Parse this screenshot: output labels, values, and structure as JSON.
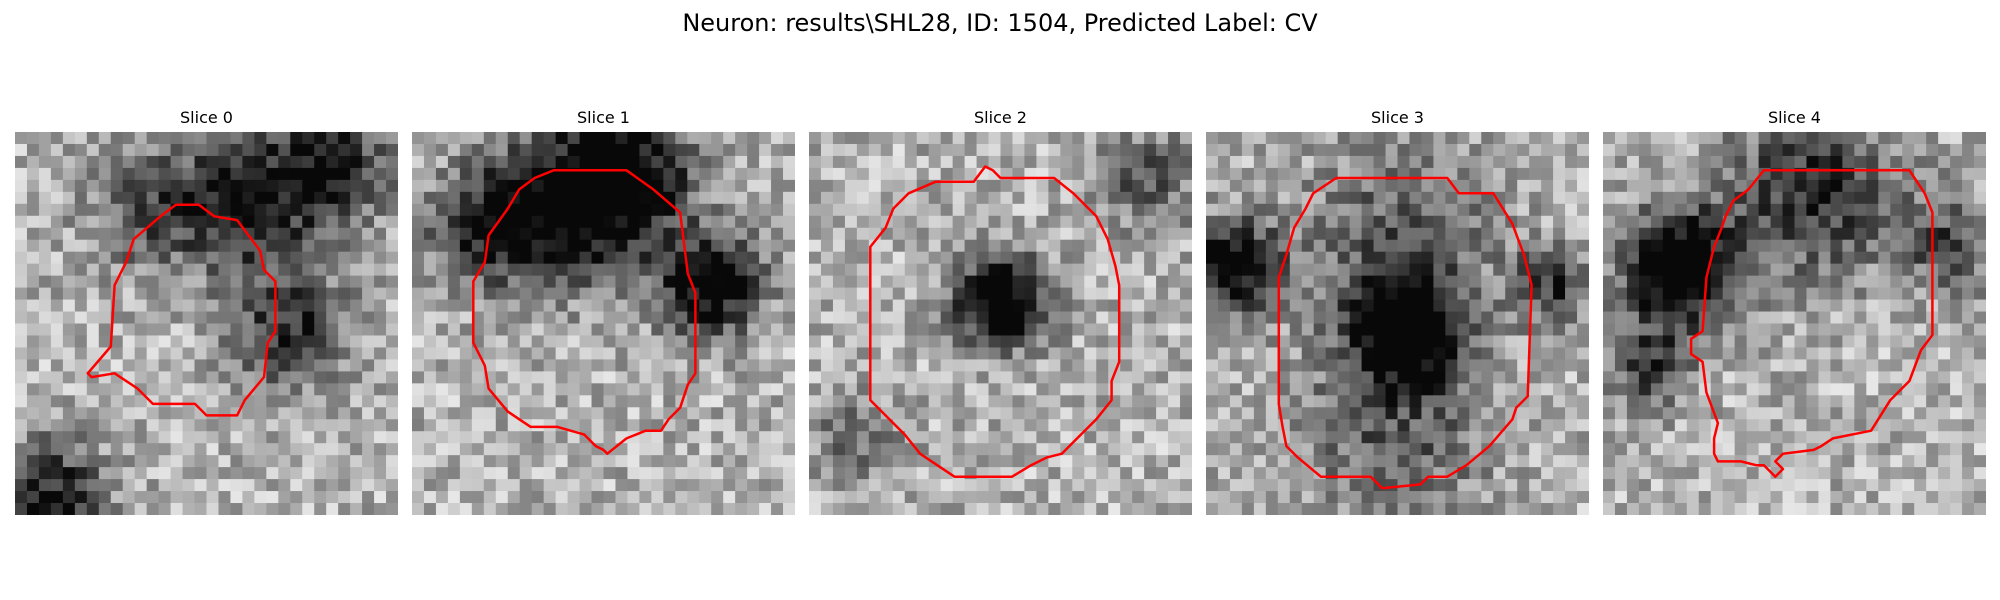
{
  "title": "Neuron: results\\SHL28, ID: 1504, Predicted Label: CV",
  "contour_color": "#ff0000",
  "slices": [
    {
      "label": "Slice 0",
      "seed": 11,
      "dark_blobs": [
        [
          0.62,
          0.18,
          0.18,
          0.65
        ],
        [
          0.85,
          0.08,
          0.15,
          0.5
        ],
        [
          0.72,
          0.52,
          0.15,
          0.55
        ],
        [
          0.1,
          0.95,
          0.14,
          0.6
        ],
        [
          0.35,
          0.2,
          0.16,
          0.4
        ]
      ],
      "contour": [
        [
          0.42,
          0.19
        ],
        [
          0.48,
          0.19
        ],
        [
          0.52,
          0.22
        ],
        [
          0.58,
          0.23
        ],
        [
          0.64,
          0.31
        ],
        [
          0.65,
          0.36
        ],
        [
          0.68,
          0.39
        ],
        [
          0.68,
          0.52
        ],
        [
          0.66,
          0.55
        ],
        [
          0.65,
          0.64
        ],
        [
          0.6,
          0.7
        ],
        [
          0.58,
          0.74
        ],
        [
          0.5,
          0.74
        ],
        [
          0.47,
          0.71
        ],
        [
          0.36,
          0.71
        ],
        [
          0.32,
          0.67
        ],
        [
          0.26,
          0.63
        ],
        [
          0.2,
          0.64
        ],
        [
          0.19,
          0.63
        ],
        [
          0.25,
          0.56
        ],
        [
          0.26,
          0.4
        ],
        [
          0.29,
          0.34
        ],
        [
          0.31,
          0.28
        ],
        [
          0.38,
          0.22
        ]
      ]
    },
    {
      "label": "Slice 1",
      "seed": 23,
      "dark_blobs": [
        [
          0.45,
          0.17,
          0.2,
          0.85
        ],
        [
          0.2,
          0.25,
          0.15,
          0.6
        ],
        [
          0.78,
          0.4,
          0.13,
          0.8
        ],
        [
          0.6,
          0.1,
          0.15,
          0.4
        ]
      ],
      "contour": [
        [
          0.37,
          0.1
        ],
        [
          0.56,
          0.1
        ],
        [
          0.63,
          0.15
        ],
        [
          0.7,
          0.21
        ],
        [
          0.72,
          0.37
        ],
        [
          0.74,
          0.42
        ],
        [
          0.74,
          0.63
        ],
        [
          0.72,
          0.66
        ],
        [
          0.7,
          0.72
        ],
        [
          0.67,
          0.75
        ],
        [
          0.65,
          0.78
        ],
        [
          0.61,
          0.78
        ],
        [
          0.56,
          0.8
        ],
        [
          0.51,
          0.84
        ],
        [
          0.5,
          0.83
        ],
        [
          0.48,
          0.82
        ],
        [
          0.45,
          0.79
        ],
        [
          0.38,
          0.77
        ],
        [
          0.31,
          0.77
        ],
        [
          0.25,
          0.73
        ],
        [
          0.2,
          0.67
        ],
        [
          0.19,
          0.61
        ],
        [
          0.16,
          0.55
        ],
        [
          0.16,
          0.39
        ],
        [
          0.19,
          0.34
        ],
        [
          0.2,
          0.27
        ],
        [
          0.25,
          0.2
        ],
        [
          0.28,
          0.15
        ],
        [
          0.32,
          0.12
        ]
      ]
    },
    {
      "label": "Slice 2",
      "seed": 37,
      "dark_blobs": [
        [
          0.5,
          0.44,
          0.12,
          0.9
        ],
        [
          0.88,
          0.12,
          0.14,
          0.35
        ],
        [
          0.12,
          0.8,
          0.12,
          0.3
        ]
      ],
      "contour": [
        [
          0.46,
          0.09
        ],
        [
          0.48,
          0.1
        ],
        [
          0.5,
          0.12
        ],
        [
          0.64,
          0.12
        ],
        [
          0.69,
          0.16
        ],
        [
          0.75,
          0.22
        ],
        [
          0.78,
          0.28
        ],
        [
          0.8,
          0.35
        ],
        [
          0.81,
          0.4
        ],
        [
          0.81,
          0.6
        ],
        [
          0.79,
          0.65
        ],
        [
          0.79,
          0.7
        ],
        [
          0.75,
          0.75
        ],
        [
          0.7,
          0.8
        ],
        [
          0.66,
          0.84
        ],
        [
          0.62,
          0.85
        ],
        [
          0.58,
          0.87
        ],
        [
          0.53,
          0.9
        ],
        [
          0.38,
          0.9
        ],
        [
          0.32,
          0.86
        ],
        [
          0.29,
          0.84
        ],
        [
          0.25,
          0.79
        ],
        [
          0.21,
          0.75
        ],
        [
          0.16,
          0.7
        ],
        [
          0.16,
          0.3
        ],
        [
          0.2,
          0.25
        ],
        [
          0.22,
          0.2
        ],
        [
          0.26,
          0.16
        ],
        [
          0.33,
          0.13
        ],
        [
          0.43,
          0.13
        ]
      ]
    },
    {
      "label": "Slice 3",
      "seed": 53,
      "dark_blobs": [
        [
          0.52,
          0.52,
          0.13,
          0.95
        ],
        [
          0.07,
          0.35,
          0.12,
          0.8
        ],
        [
          0.9,
          0.4,
          0.1,
          0.5
        ],
        [
          0.5,
          0.28,
          0.25,
          0.35
        ],
        [
          0.5,
          0.78,
          0.25,
          0.35
        ]
      ],
      "contour": [
        [
          0.34,
          0.12
        ],
        [
          0.63,
          0.12
        ],
        [
          0.66,
          0.16
        ],
        [
          0.75,
          0.16
        ],
        [
          0.8,
          0.24
        ],
        [
          0.83,
          0.32
        ],
        [
          0.85,
          0.4
        ],
        [
          0.84,
          0.69
        ],
        [
          0.81,
          0.72
        ],
        [
          0.8,
          0.75
        ],
        [
          0.74,
          0.82
        ],
        [
          0.68,
          0.87
        ],
        [
          0.63,
          0.9
        ],
        [
          0.58,
          0.9
        ],
        [
          0.56,
          0.92
        ],
        [
          0.46,
          0.93
        ],
        [
          0.43,
          0.9
        ],
        [
          0.3,
          0.9
        ],
        [
          0.24,
          0.85
        ],
        [
          0.21,
          0.82
        ],
        [
          0.2,
          0.77
        ],
        [
          0.19,
          0.71
        ],
        [
          0.19,
          0.38
        ],
        [
          0.21,
          0.32
        ],
        [
          0.23,
          0.25
        ],
        [
          0.26,
          0.2
        ],
        [
          0.28,
          0.16
        ]
      ]
    },
    {
      "label": "Slice 4",
      "seed": 71,
      "dark_blobs": [
        [
          0.2,
          0.36,
          0.15,
          0.95
        ],
        [
          0.55,
          0.15,
          0.22,
          0.55
        ],
        [
          0.12,
          0.62,
          0.1,
          0.5
        ],
        [
          0.9,
          0.3,
          0.12,
          0.4
        ]
      ],
      "contour": [
        [
          0.42,
          0.1
        ],
        [
          0.8,
          0.1
        ],
        [
          0.84,
          0.16
        ],
        [
          0.86,
          0.21
        ],
        [
          0.86,
          0.53
        ],
        [
          0.83,
          0.57
        ],
        [
          0.8,
          0.65
        ],
        [
          0.75,
          0.7
        ],
        [
          0.7,
          0.78
        ],
        [
          0.6,
          0.8
        ],
        [
          0.57,
          0.82
        ],
        [
          0.55,
          0.83
        ],
        [
          0.47,
          0.84
        ],
        [
          0.45,
          0.86
        ],
        [
          0.47,
          0.88
        ],
        [
          0.45,
          0.9
        ],
        [
          0.42,
          0.87
        ],
        [
          0.4,
          0.87
        ],
        [
          0.36,
          0.86
        ],
        [
          0.3,
          0.86
        ],
        [
          0.29,
          0.84
        ],
        [
          0.29,
          0.8
        ],
        [
          0.3,
          0.76
        ],
        [
          0.27,
          0.68
        ],
        [
          0.26,
          0.6
        ],
        [
          0.23,
          0.58
        ],
        [
          0.23,
          0.54
        ],
        [
          0.26,
          0.52
        ],
        [
          0.27,
          0.38
        ],
        [
          0.29,
          0.3
        ],
        [
          0.31,
          0.25
        ],
        [
          0.32,
          0.22
        ],
        [
          0.34,
          0.18
        ],
        [
          0.38,
          0.15
        ]
      ]
    }
  ]
}
